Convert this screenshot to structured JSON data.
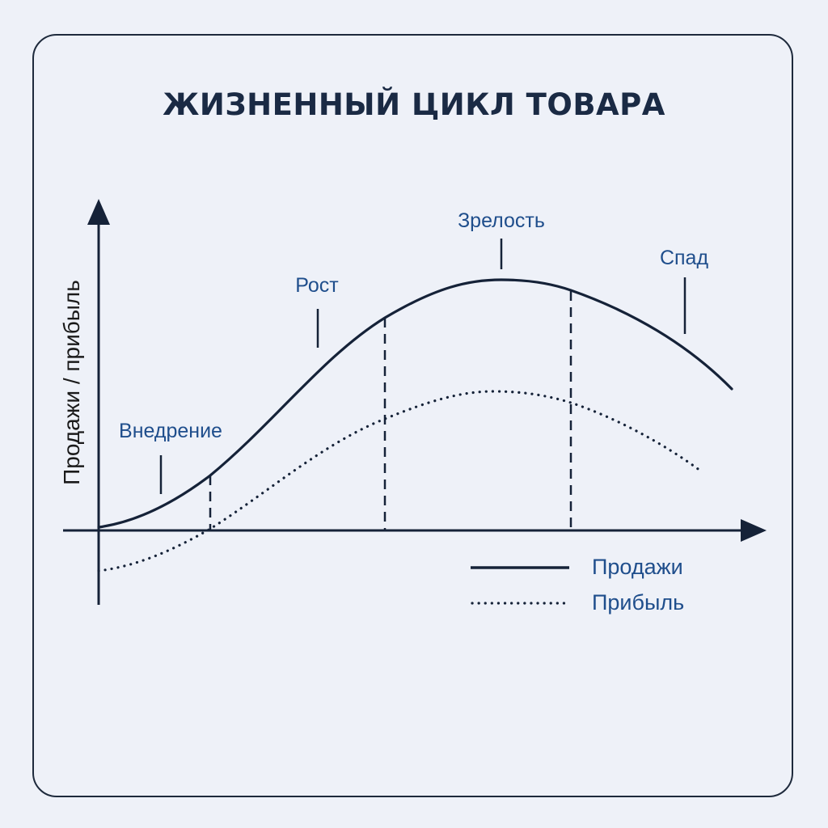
{
  "title": "ЖИЗНЕННЫЙ ЦИКЛ ТОВАРА",
  "y_axis_label": "Продажи / прибыль",
  "stages": {
    "introduction": "Внедрение",
    "growth": "Рост",
    "maturity": "Зрелость",
    "decline": "Спад"
  },
  "legend": {
    "sales": "Продажи",
    "profit": "Прибыль"
  },
  "colors": {
    "line": "#152238",
    "label": "#1f4e8c",
    "background": "#eef1f8"
  }
}
